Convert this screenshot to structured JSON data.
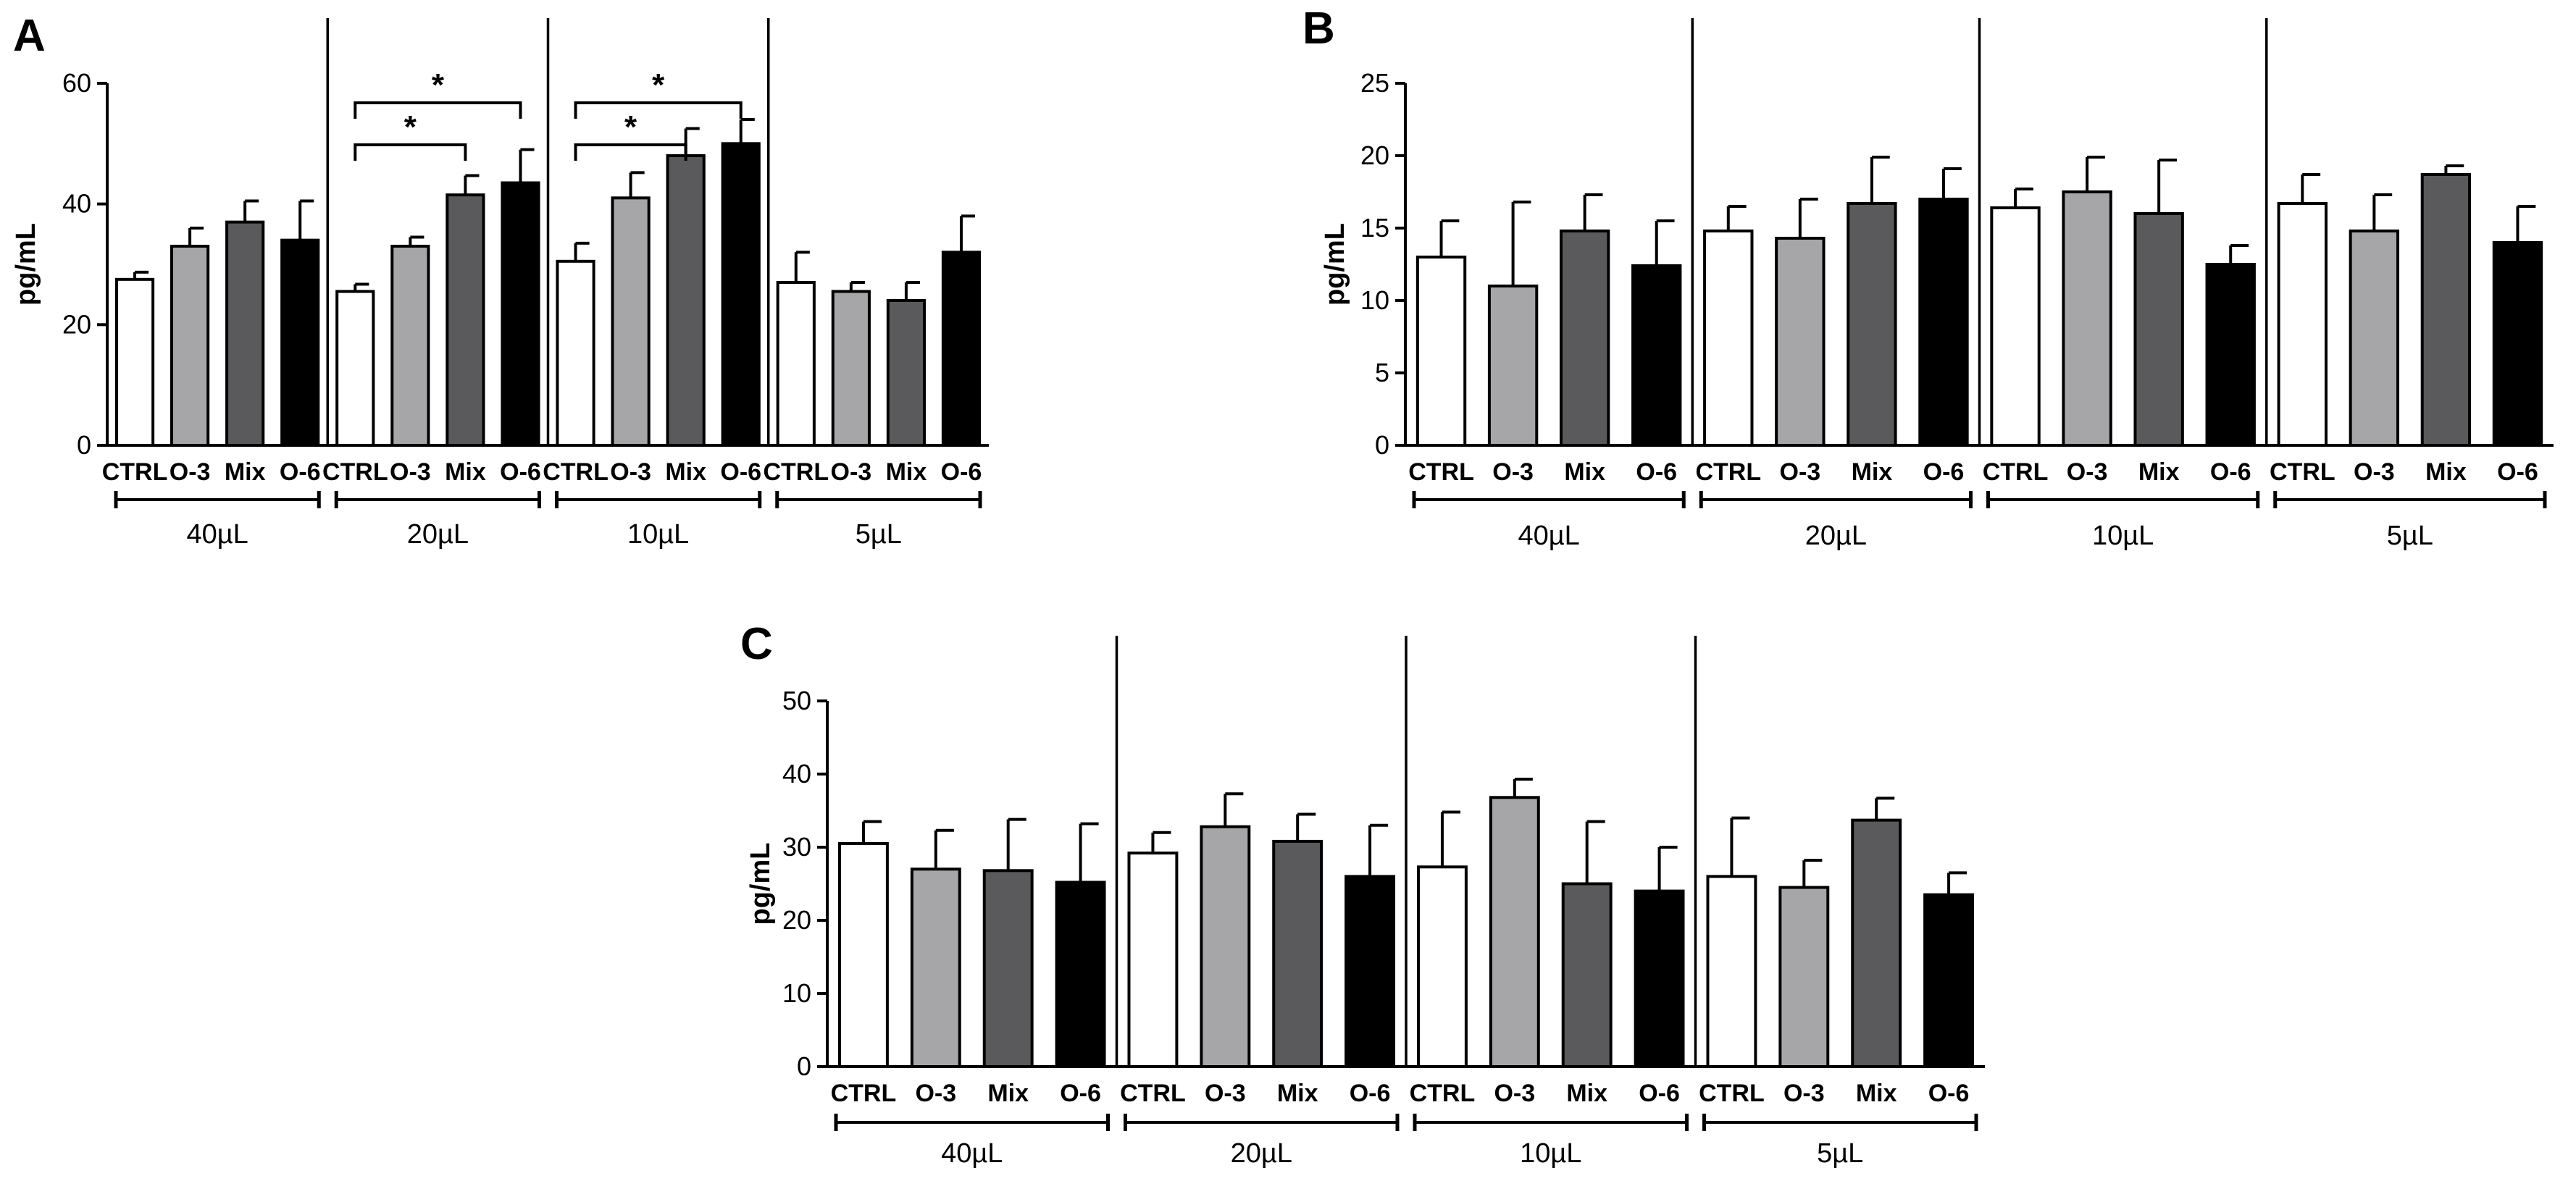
{
  "chart_data": [
    {
      "panel": "A",
      "type": "bar",
      "ylabel": "pg/mL",
      "ylim": [
        0,
        60
      ],
      "yticks": [
        "0",
        "20",
        "40",
        "60"
      ],
      "colors": [
        "#ffffff",
        "#a6a6a8",
        "#5a5a5c",
        "#000000"
      ],
      "groups": [
        {
          "label": "40µL",
          "categories": [
            "CTRL",
            "O-3",
            "Mix",
            "O-6"
          ],
          "values": [
            27.5,
            33,
            37,
            34
          ],
          "errors": [
            1.2,
            3,
            3.5,
            6.5
          ]
        },
        {
          "label": "20µL",
          "categories": [
            "CTRL",
            "O-3",
            "Mix",
            "O-6"
          ],
          "values": [
            25.5,
            33,
            41.5,
            43.5
          ],
          "errors": [
            1.2,
            1.5,
            3.2,
            5.5
          ]
        },
        {
          "label": "10µL",
          "categories": [
            "CTRL",
            "O-3",
            "Mix",
            "O-6"
          ],
          "values": [
            30.5,
            41,
            48,
            50
          ],
          "errors": [
            3,
            4.2,
            4.5,
            4
          ]
        },
        {
          "label": "5µL",
          "categories": [
            "CTRL",
            "O-3",
            "Mix",
            "O-6"
          ],
          "values": [
            27,
            25.5,
            24,
            32
          ],
          "errors": [
            5,
            1.5,
            3,
            6
          ]
        }
      ],
      "significance": [
        {
          "group": 1,
          "from": 0,
          "to": 2,
          "label": "*"
        },
        {
          "group": 1,
          "from": 0,
          "to": 3,
          "label": "*"
        },
        {
          "group": 2,
          "from": 0,
          "to": 2,
          "label": "*"
        },
        {
          "group": 2,
          "from": 0,
          "to": 3,
          "label": "*"
        }
      ]
    },
    {
      "panel": "B",
      "type": "bar",
      "ylabel": "pg/mL",
      "ylim": [
        0,
        25
      ],
      "yticks": [
        "0",
        "5",
        "10",
        "15",
        "20",
        "25"
      ],
      "colors": [
        "#ffffff",
        "#a6a6a8",
        "#5a5a5c",
        "#000000"
      ],
      "groups": [
        {
          "label": "40µL",
          "categories": [
            "CTRL",
            "O-3",
            "Mix",
            "O-6"
          ],
          "values": [
            13,
            11,
            14.8,
            12.4
          ],
          "errors": [
            2.5,
            5.8,
            2.5,
            3.1
          ]
        },
        {
          "label": "20µL",
          "categories": [
            "CTRL",
            "O-3",
            "Mix",
            "O-6"
          ],
          "values": [
            14.8,
            14.3,
            16.7,
            17
          ],
          "errors": [
            1.7,
            2.7,
            3.2,
            2.1
          ]
        },
        {
          "label": "10µL",
          "categories": [
            "CTRL",
            "O-3",
            "Mix",
            "O-6"
          ],
          "values": [
            16.4,
            17.5,
            16,
            12.5
          ],
          "errors": [
            1.3,
            2.4,
            3.7,
            1.3
          ]
        },
        {
          "label": "5µL",
          "categories": [
            "CTRL",
            "O-3",
            "Mix",
            "O-6"
          ],
          "values": [
            16.7,
            14.8,
            18.7,
            14
          ],
          "errors": [
            2,
            2.5,
            0.6,
            2.5
          ]
        }
      ],
      "significance": []
    },
    {
      "panel": "C",
      "type": "bar",
      "ylabel": "pg/mL",
      "ylim": [
        0,
        50
      ],
      "yticks": [
        "0",
        "10",
        "20",
        "30",
        "40",
        "50"
      ],
      "colors": [
        "#ffffff",
        "#a6a6a8",
        "#5a5a5c",
        "#000000"
      ],
      "groups": [
        {
          "label": "40µL",
          "categories": [
            "CTRL",
            "O-3",
            "Mix",
            "O-6"
          ],
          "values": [
            30.5,
            27,
            26.8,
            25.2
          ],
          "errors": [
            3,
            5.3,
            7,
            8
          ]
        },
        {
          "label": "20µL",
          "categories": [
            "CTRL",
            "O-3",
            "Mix",
            "O-6"
          ],
          "values": [
            29.2,
            32.8,
            30.8,
            26
          ],
          "errors": [
            2.8,
            4.5,
            3.7,
            7
          ]
        },
        {
          "label": "10µL",
          "categories": [
            "CTRL",
            "O-3",
            "Mix",
            "O-6"
          ],
          "values": [
            27.3,
            36.8,
            25,
            24
          ],
          "errors": [
            7.5,
            2.5,
            8.5,
            6
          ]
        },
        {
          "label": "5µL",
          "categories": [
            "CTRL",
            "O-3",
            "Mix",
            "O-6"
          ],
          "values": [
            26,
            24.5,
            33.7,
            23.5
          ],
          "errors": [
            8,
            3.7,
            3,
            3
          ]
        }
      ],
      "significance": []
    }
  ]
}
